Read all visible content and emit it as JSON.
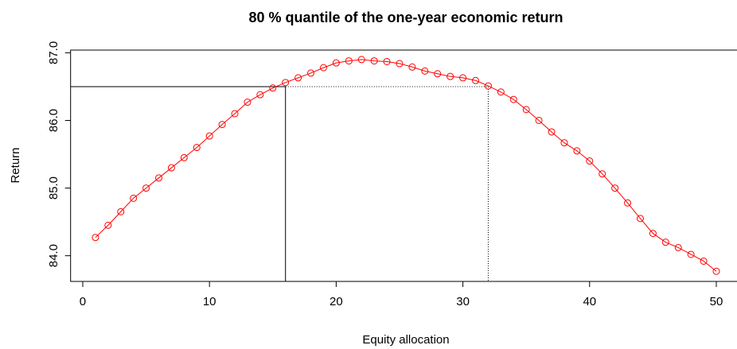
{
  "chart_data": {
    "type": "line",
    "title": "80 % quantile of the one-year economic return",
    "x_label": "Equity allocation",
    "y_label": "Return",
    "x": [
      1,
      2,
      3,
      4,
      5,
      6,
      7,
      8,
      9,
      10,
      11,
      12,
      13,
      14,
      15,
      16,
      17,
      18,
      19,
      20,
      21,
      22,
      23,
      24,
      25,
      26,
      27,
      28,
      29,
      30,
      31,
      32,
      33,
      34,
      35,
      36,
      37,
      38,
      39,
      40,
      41,
      42,
      43,
      44,
      45,
      46,
      47,
      48,
      49,
      50
    ],
    "values": [
      84.27,
      84.45,
      84.65,
      84.85,
      85.0,
      85.15,
      85.3,
      85.45,
      85.6,
      85.77,
      85.94,
      86.1,
      86.27,
      86.38,
      86.48,
      86.56,
      86.63,
      86.7,
      86.78,
      86.85,
      86.88,
      86.9,
      86.88,
      86.87,
      86.84,
      86.79,
      86.73,
      86.69,
      86.65,
      86.63,
      86.59,
      86.51,
      86.42,
      86.31,
      86.16,
      86.0,
      85.83,
      85.67,
      85.55,
      85.4,
      85.21,
      85.0,
      84.78,
      84.55,
      84.33,
      84.2,
      84.12,
      84.02,
      83.92,
      83.77
    ],
    "color": "#ff0000",
    "xlim": [
      -0.96,
      51.96
    ],
    "xticks": [
      0,
      10,
      20,
      30,
      40,
      50
    ],
    "ylim": [
      83.62,
      87.04
    ],
    "yticks": [
      {
        "value": 84,
        "label": "84.0"
      },
      {
        "value": 85,
        "label": "85.0"
      },
      {
        "value": 86,
        "label": "86.0"
      },
      {
        "value": 87,
        "label": "87.0"
      }
    ],
    "reference": {
      "y": 86.5,
      "x": [
        16,
        32
      ]
    }
  }
}
